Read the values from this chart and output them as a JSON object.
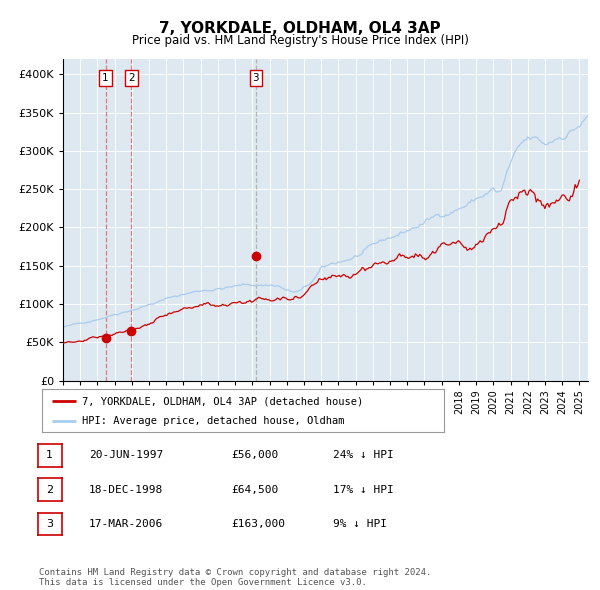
{
  "title": "7, YORKDALE, OLDHAM, OL4 3AP",
  "subtitle": "Price paid vs. HM Land Registry's House Price Index (HPI)",
  "legend_entry1": "7, YORKDALE, OLDHAM, OL4 3AP (detached house)",
  "legend_entry2": "HPI: Average price, detached house, Oldham",
  "transaction_color": "#cc0000",
  "hpi_color": "#aaccee",
  "background_color": "#ffffff",
  "plot_bg_color": "#dde8f0",
  "grid_color": "#ffffff",
  "transactions": [
    {
      "label": "1",
      "date_num": 1997.47,
      "price": 56000,
      "date_str": "20-JUN-1997",
      "pct": "24%",
      "direction": "↓"
    },
    {
      "label": "2",
      "date_num": 1998.97,
      "price": 64500,
      "date_str": "18-DEC-1998",
      "pct": "17%",
      "direction": "↓"
    },
    {
      "label": "3",
      "date_num": 2006.21,
      "price": 163000,
      "date_str": "17-MAR-2006",
      "pct": "9%",
      "direction": "↓"
    }
  ],
  "vline_colors": [
    "#dd6666",
    "#dd6666",
    "#aaaaaa"
  ],
  "marker_color": "#cc0000",
  "table_border_color": "#cc0000",
  "footer": "Contains HM Land Registry data © Crown copyright and database right 2024.\nThis data is licensed under the Open Government Licence v3.0.",
  "ylim": [
    0,
    420000
  ],
  "yticks": [
    0,
    50000,
    100000,
    150000,
    200000,
    250000,
    300000,
    350000,
    400000
  ],
  "xlim_start": 1995.0,
  "xlim_end": 2025.5
}
